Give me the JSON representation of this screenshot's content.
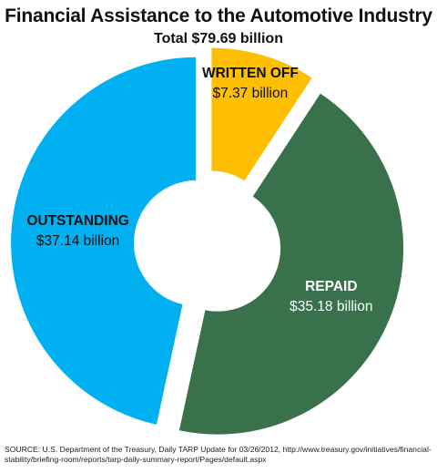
{
  "chart_data": {
    "type": "pie",
    "title": "Financial Assistance to the Automotive Industry",
    "subtitle": "Total $79.69 billion",
    "unit": "billion USD",
    "donut": true,
    "slices": [
      {
        "label": "WRITTEN OFF",
        "value": 7.37,
        "value_label": "$7.37 billion",
        "color": "#FDBF00",
        "text_color": "#111111"
      },
      {
        "label": "REPAID",
        "value": 35.18,
        "value_label": "$35.18 billion",
        "color": "#38714A",
        "text_color": "#ffffff"
      },
      {
        "label": "OUTSTANDING",
        "value": 37.14,
        "value_label": "$37.14 billion",
        "color": "#00B0F0",
        "text_color": "#111111"
      }
    ]
  },
  "source": "SOURCE: U.S. Department of the Treasury, Daily TARP Update for 03/26/2012, http://www.treasury.gov/initiatives/financial-stability/briefing-room/reports/tarp-daily-summary-report/Pages/default.aspx"
}
